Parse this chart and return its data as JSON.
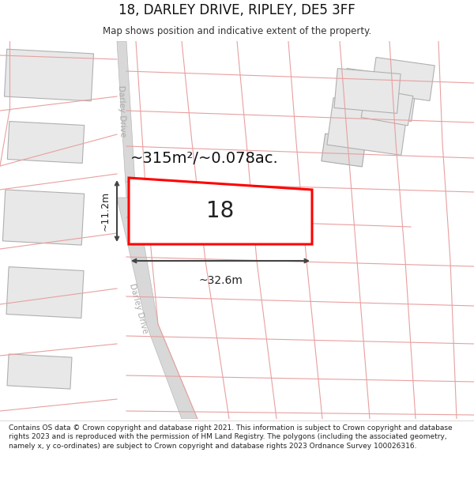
{
  "title": "18, DARLEY DRIVE, RIPLEY, DE5 3FF",
  "subtitle": "Map shows position and indicative extent of the property.",
  "copyright_text": "Contains OS data © Crown copyright and database right 2021. This information is subject to Crown copyright and database rights 2023 and is reproduced with the permission of HM Land Registry. The polygons (including the associated geometry, namely x, y co-ordinates) are subject to Crown copyright and database rights 2023 Ordnance Survey 100026316.",
  "area_label": "~315m²/~0.078ac.",
  "number_label": "18",
  "width_label": "~32.6m",
  "height_label": "~11.2m",
  "road_label": "Darley Drive",
  "map_bg": "#ffffff",
  "title_bg": "#ffffff",
  "footer_bg": "#ffffff",
  "property_rect_color": "#ff0000",
  "property_fill": "#ffffff",
  "road_fill": "#d8d8d8",
  "road_edge": "#b8b8b8",
  "building_fill": "#e8e8e8",
  "building_edge": "#b0b0b0",
  "parcel_fill": "#f0f0f0",
  "parcel_edge": "#cccccc",
  "pink_line_color": "#e8a0a0",
  "dim_color": "#444444",
  "text_color": "#111111",
  "subtitle_color": "#333333",
  "road_text_color": "#aaaaaa"
}
